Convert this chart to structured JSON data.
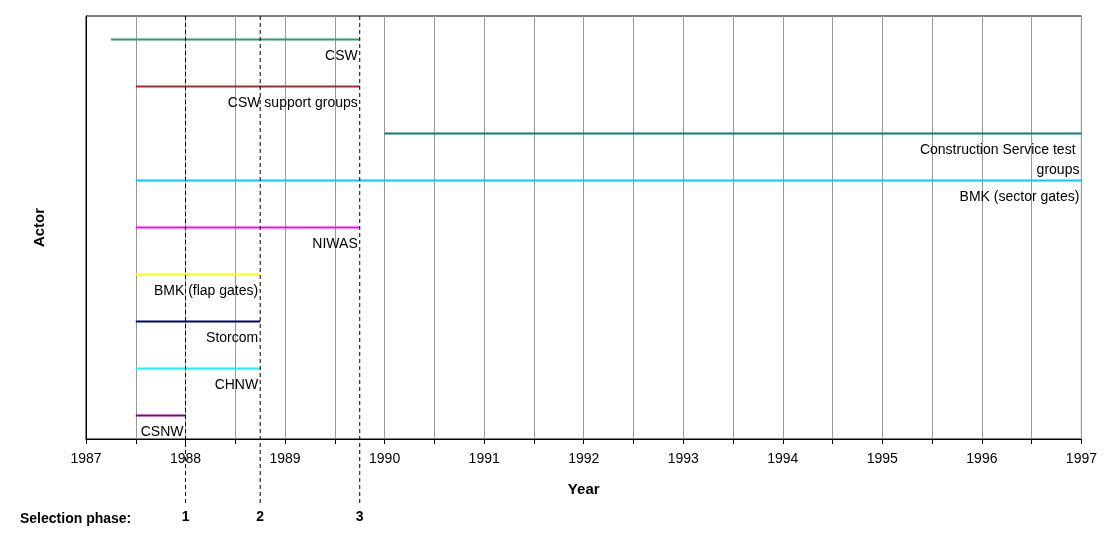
{
  "chart_data": {
    "type": "bar",
    "orientation": "horizontal",
    "xlabel": "Year",
    "ylabel": "Actor",
    "categories": [
      "CSW",
      "CSW support groups",
      "Construction Service test groups",
      "BMK (sector gates)",
      "NIWAS",
      "BMK (flap gates)",
      "Storcom",
      "CHNW",
      "CSNW"
    ],
    "base": [
      1987.25,
      1987.5,
      1990,
      1987.5,
      1987.5,
      1987.5,
      1987.5,
      1987.5,
      1987.5
    ],
    "values": [
      2.5,
      2.25,
      7,
      9.5,
      2.25,
      1.25,
      1.25,
      1.25,
      0.5
    ],
    "colors": [
      "#339966",
      "#993333",
      "#008080",
      "#00ccff",
      "#ff00ff",
      "#ffff00",
      "#000080",
      "#00ffff",
      "#800080"
    ],
    "xlim": [
      1987,
      1997
    ],
    "xticks": [
      1987,
      {
        "value": 1987.5,
        "label": null
      },
      1988,
      {
        "value": 1988.5,
        "label": null
      },
      1989,
      {
        "value": 1989.5,
        "label": null
      },
      1990,
      {
        "value": 1990.5,
        "label": null
      },
      1991,
      {
        "value": 1991.5,
        "label": null
      },
      1992,
      {
        "value": 1992.5,
        "label": null
      },
      1993,
      {
        "value": 1993.5,
        "label": null
      },
      1994,
      {
        "value": 1994.5,
        "label": null
      },
      1995,
      {
        "value": 1995.5,
        "label": null
      },
      1996,
      {
        "value": 1996.5,
        "label": null
      },
      1997
    ],
    "grid": "x",
    "ref_lines": [
      {
        "axis": "x",
        "value": 1988,
        "color": "#000000",
        "line_style": "dashed"
      },
      {
        "axis": "x",
        "value": 1988.75,
        "color": "#000000",
        "line_style": "dashed"
      },
      {
        "axis": "x",
        "value": 1989.75,
        "color": "#000000",
        "line_style": "dashed"
      }
    ],
    "annotations": [
      "Selection phase:",
      "1",
      "2",
      "3"
    ]
  }
}
